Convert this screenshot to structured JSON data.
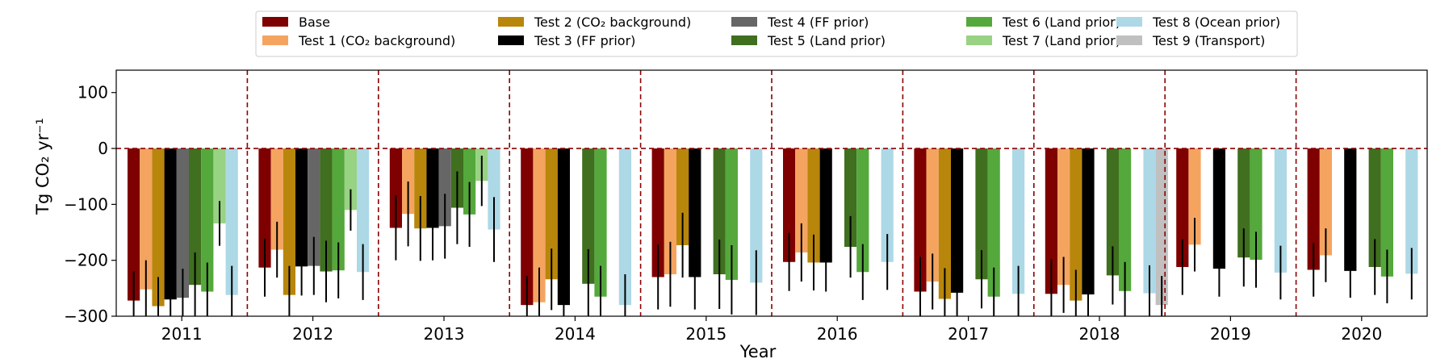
{
  "chart_data": {
    "type": "bar",
    "title": "",
    "xlabel": "Year",
    "ylabel": "Tg CO₂ yr⁻¹",
    "ylim": [
      -300,
      140
    ],
    "yticks": [
      -300,
      -200,
      -100,
      0,
      100
    ],
    "ytick_labels": [
      "−300",
      "−200",
      "−100",
      "0",
      "100"
    ],
    "grid": false,
    "legend_position": "top-center",
    "reference_line": 0,
    "categories": [
      "2011",
      "2012",
      "2013",
      "2014",
      "2015",
      "2016",
      "2017",
      "2018",
      "2019",
      "2020"
    ],
    "series": [
      {
        "name": "Base",
        "color": "#7f0000",
        "values": [
          -272,
          -213,
          -142,
          -280,
          -230,
          -203,
          -256,
          -260,
          -212,
          -217
        ],
        "errors": [
          52,
          52,
          58,
          52,
          58,
          52,
          62,
          62,
          50,
          48
        ]
      },
      {
        "name": "Test 1 (CO₂ background)",
        "color": "#f5a460",
        "values": [
          -252,
          -181,
          -117,
          -275,
          -225,
          -186,
          -238,
          -244,
          -172,
          -191
        ],
        "errors": [
          52,
          50,
          58,
          62,
          58,
          52,
          50,
          50,
          48,
          48
        ]
      },
      {
        "name": "Test 2 (CO₂ background)",
        "color": "#b8860b",
        "values": [
          -282,
          -262,
          -143,
          -234,
          -173,
          -204,
          -269,
          -272,
          null,
          null
        ],
        "errors": [
          52,
          52,
          58,
          55,
          58,
          50,
          55,
          55,
          null,
          null
        ]
      },
      {
        "name": "Test 3 (FF prior)",
        "color": "#000000",
        "values": [
          -270,
          -211,
          -142,
          -280,
          -230,
          -204,
          -258,
          -261,
          -215,
          -219
        ],
        "errors": [
          52,
          52,
          58,
          52,
          58,
          52,
          62,
          62,
          50,
          48
        ]
      },
      {
        "name": "Test 4 (FF prior)",
        "color": "#666666",
        "values": [
          -267,
          -210,
          -139,
          null,
          null,
          null,
          null,
          null,
          null,
          null
        ],
        "errors": [
          52,
          52,
          58,
          null,
          null,
          null,
          null,
          null,
          null,
          null
        ]
      },
      {
        "name": "Test 5 (Land prior)",
        "color": "#3f6f1f",
        "values": [
          -244,
          -220,
          -106,
          -242,
          -225,
          -176,
          -234,
          -227,
          -195,
          -212
        ],
        "errors": [
          58,
          55,
          65,
          62,
          62,
          55,
          52,
          52,
          52,
          50
        ]
      },
      {
        "name": "Test 6 (Land prior)",
        "color": "#55a83c",
        "values": [
          -256,
          -218,
          -118,
          -265,
          -235,
          -221,
          -265,
          -255,
          -199,
          -229
        ],
        "errors": [
          52,
          50,
          58,
          55,
          62,
          50,
          52,
          52,
          50,
          48
        ]
      },
      {
        "name": "Test 7 (Land prior)",
        "color": "#98d283",
        "values": [
          -134,
          -110,
          -58,
          null,
          null,
          null,
          null,
          null,
          null,
          null
        ],
        "errors": [
          40,
          37,
          45,
          null,
          null,
          null,
          null,
          null,
          null,
          null
        ]
      },
      {
        "name": "Test 8 (Ocean prior)",
        "color": "#add8e6",
        "values": [
          -262,
          -221,
          -145,
          -280,
          -240,
          -203,
          -260,
          -259,
          -222,
          -224
        ],
        "errors": [
          52,
          50,
          58,
          55,
          58,
          50,
          50,
          50,
          48,
          46
        ]
      },
      {
        "name": "Test 9 (Transport)",
        "color": "#c0c0c0",
        "values": [
          null,
          null,
          null,
          null,
          null,
          null,
          null,
          -280,
          null,
          null
        ],
        "errors": [
          null,
          null,
          null,
          null,
          null,
          null,
          null,
          52,
          null,
          null
        ]
      }
    ]
  }
}
